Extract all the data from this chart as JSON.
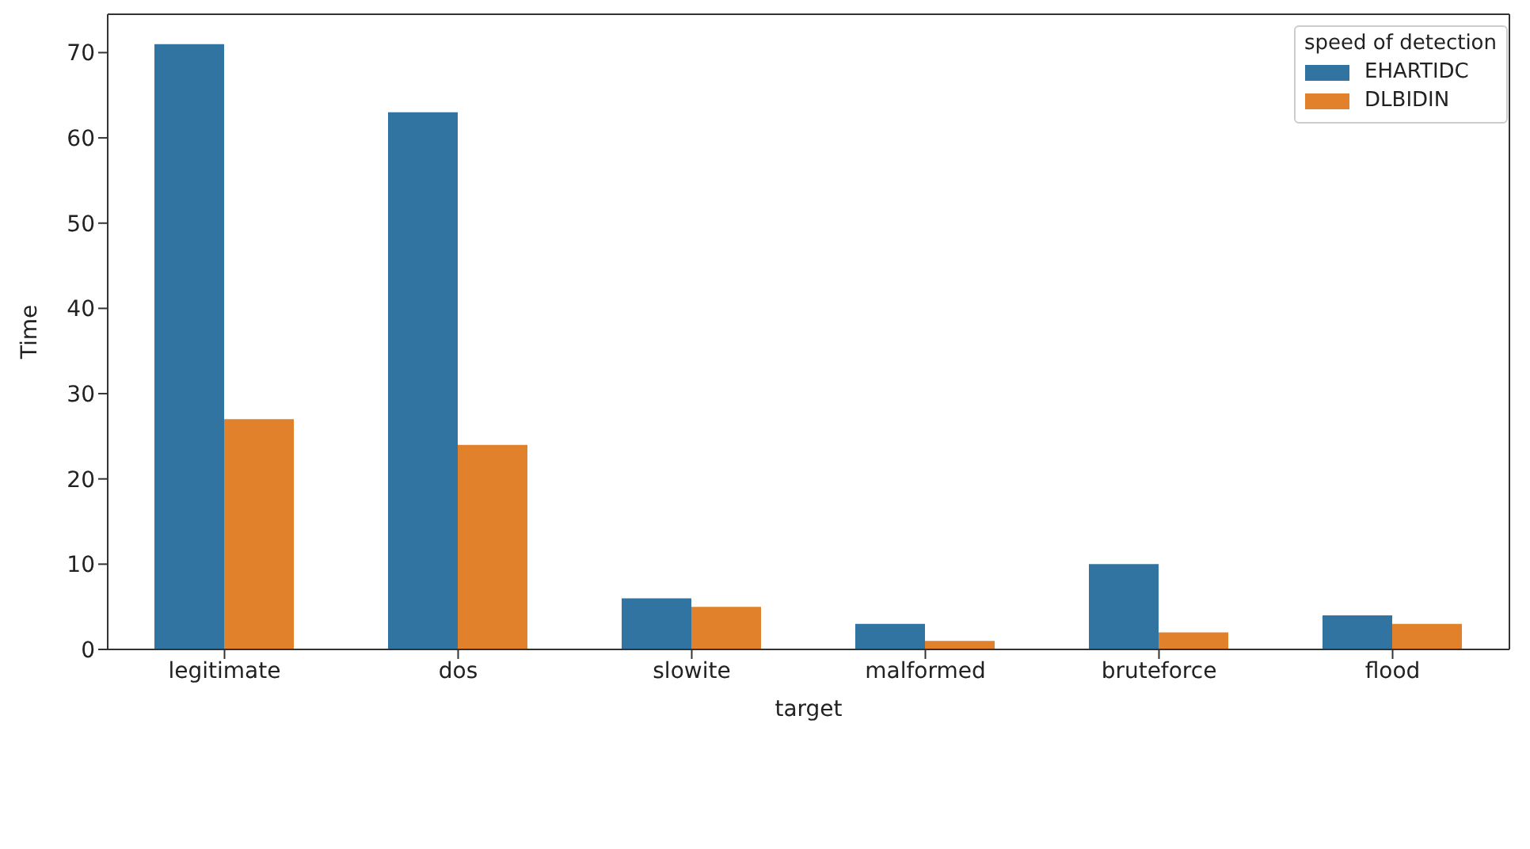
{
  "chart_data": {
    "type": "bar",
    "xlabel": "target",
    "ylabel": "Time",
    "legend_title": "speed of detection",
    "legend": "top right",
    "grid": false,
    "categories": [
      "legitimate",
      "dos",
      "slowite",
      "malformed",
      "bruteforce",
      "flood"
    ],
    "series": [
      {
        "name": "EHARTIDC",
        "color": "#3274a1",
        "values": [
          71,
          63,
          6,
          3,
          10,
          4
        ]
      },
      {
        "name": "DLBIDIN",
        "color": "#e1812c",
        "values": [
          27,
          24,
          5,
          1,
          2,
          3
        ]
      }
    ],
    "ylim": [
      0,
      74.5
    ],
    "yticks": [
      0,
      10,
      20,
      30,
      40,
      50,
      60,
      70
    ]
  }
}
